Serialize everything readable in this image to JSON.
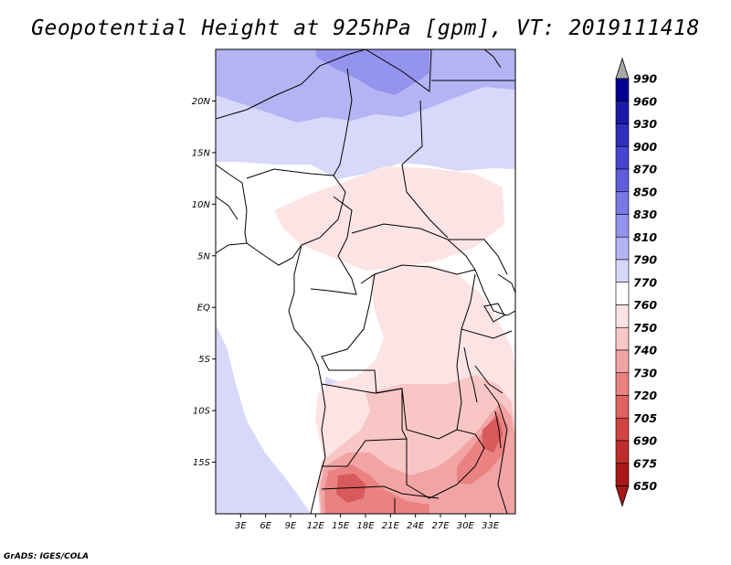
{
  "title": "Geopotential Height at 925hPa [gpm], VT: 2019111418",
  "credit": "GrADS: IGES/COLA",
  "map": {
    "lon_range": [
      0,
      36
    ],
    "lat_range": [
      -20,
      25
    ],
    "lon_ticks": [
      {
        "value": 3,
        "label": "3E"
      },
      {
        "value": 6,
        "label": "6E"
      },
      {
        "value": 9,
        "label": "9E"
      },
      {
        "value": 12,
        "label": "12E"
      },
      {
        "value": 15,
        "label": "15E"
      },
      {
        "value": 18,
        "label": "18E"
      },
      {
        "value": 21,
        "label": "21E"
      },
      {
        "value": 24,
        "label": "24E"
      },
      {
        "value": 27,
        "label": "27E"
      },
      {
        "value": 30,
        "label": "30E"
      },
      {
        "value": 33,
        "label": "33E"
      }
    ],
    "lat_ticks": [
      {
        "value": 20,
        "label": "20N"
      },
      {
        "value": 15,
        "label": "15N"
      },
      {
        "value": 10,
        "label": "10N"
      },
      {
        "value": 5,
        "label": "5N"
      },
      {
        "value": 0,
        "label": "EQ"
      },
      {
        "value": -5,
        "label": "5S"
      },
      {
        "value": -10,
        "label": "10S"
      },
      {
        "value": -15,
        "label": "15S"
      }
    ]
  },
  "colorbar": {
    "levels": [
      {
        "label": "990",
        "color": "#7b7be8"
      },
      {
        "label": "960",
        "color": "#000090"
      },
      {
        "label": "930",
        "color": "#1a1aa8"
      },
      {
        "label": "900",
        "color": "#2f2fbe"
      },
      {
        "label": "870",
        "color": "#4646d0"
      },
      {
        "label": "850",
        "color": "#5e5edc"
      },
      {
        "label": "830",
        "color": "#7878e6"
      },
      {
        "label": "810",
        "color": "#9494ee"
      },
      {
        "label": "790",
        "color": "#b4b4f4"
      },
      {
        "label": "770",
        "color": "#d8d8fb"
      },
      {
        "label": "760",
        "color": "#ffffff"
      },
      {
        "label": "750",
        "color": "#fde4e4"
      },
      {
        "label": "740",
        "color": "#f9c6c6"
      },
      {
        "label": "730",
        "color": "#f2a4a4"
      },
      {
        "label": "720",
        "color": "#ea8282"
      },
      {
        "label": "705",
        "color": "#e06262"
      },
      {
        "label": "690",
        "color": "#d24444"
      },
      {
        "label": "675",
        "color": "#c02c2c"
      },
      {
        "label": "650",
        "color": "#a81818"
      }
    ],
    "top_arrow_color": "#a8a8a8",
    "bottom_arrow_color": "#a81818"
  },
  "field_colors": {
    "ocean_blue": "#d8d8fb",
    "north_blue": "#b4b4f4",
    "north_blue_dark": "#9494ee",
    "land_white": "#ffffff",
    "pink_light": "#fde4e4",
    "pink": "#f9c6c6",
    "pink_mid": "#f2a4a4",
    "red": "#ea8282",
    "red_dark": "#d85a5a"
  }
}
